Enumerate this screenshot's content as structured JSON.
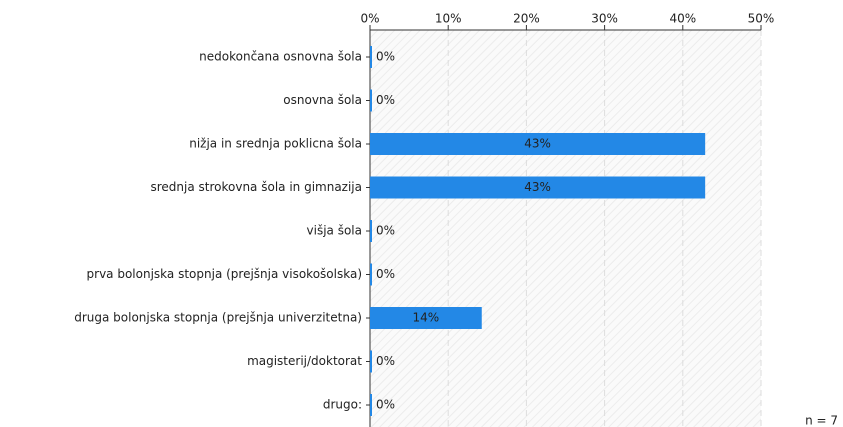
{
  "chart_data": {
    "type": "bar",
    "orientation": "horizontal",
    "categories": [
      "nedokončana osnovna šola",
      "osnovna šola",
      "nižja in srednja poklicna šola",
      "srednja strokovna šola in gimnazija",
      "višja šola",
      "prva bolonjska stopnja (prejšnja visokošolska)",
      "druga bolonjska stopnja (prejšnja univerzitetna)",
      "magisterij/doktorat",
      "drugo:"
    ],
    "values": [
      0,
      0,
      42.86,
      42.86,
      0,
      0,
      14.29,
      0,
      0
    ],
    "value_labels": [
      "0%",
      "0%",
      "43%",
      "43%",
      "0%",
      "0%",
      "14%",
      "0%",
      "0%"
    ],
    "color": "#2388e6",
    "xlim": [
      0,
      50
    ],
    "xticks": [
      {
        "value": 0,
        "label": "0%"
      },
      {
        "value": 10,
        "label": "10%"
      },
      {
        "value": 20,
        "label": "20%"
      },
      {
        "value": 30,
        "label": "30%"
      },
      {
        "value": 40,
        "label": "40%"
      },
      {
        "value": 50,
        "label": "50%"
      }
    ],
    "grid": true,
    "note": "n = 7"
  }
}
